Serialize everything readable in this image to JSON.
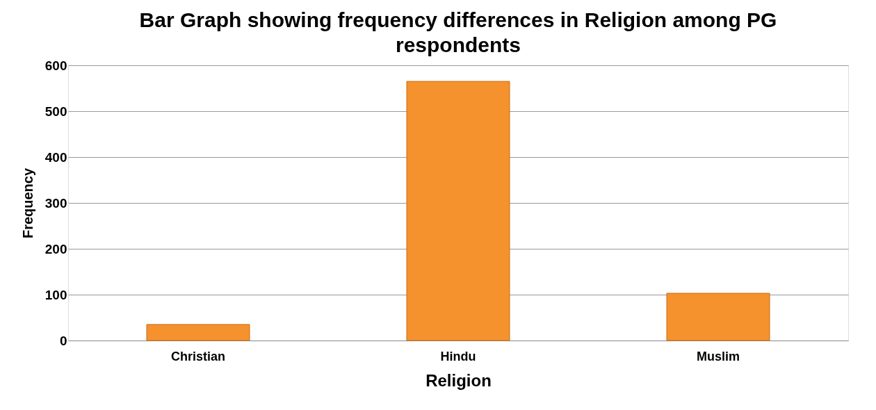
{
  "chart_data": {
    "type": "bar",
    "title": "Bar Graph showing frequency differences in Religion among PG respondents",
    "xlabel": "Religion",
    "ylabel": "Frequency",
    "categories": [
      "Christian",
      "Hindu",
      "Muslim"
    ],
    "values": [
      35,
      565,
      103
    ],
    "color": "#f5922e",
    "ylim": [
      0,
      600
    ],
    "yticks": [
      0,
      100,
      200,
      300,
      400,
      500,
      600
    ],
    "grid": "y"
  }
}
